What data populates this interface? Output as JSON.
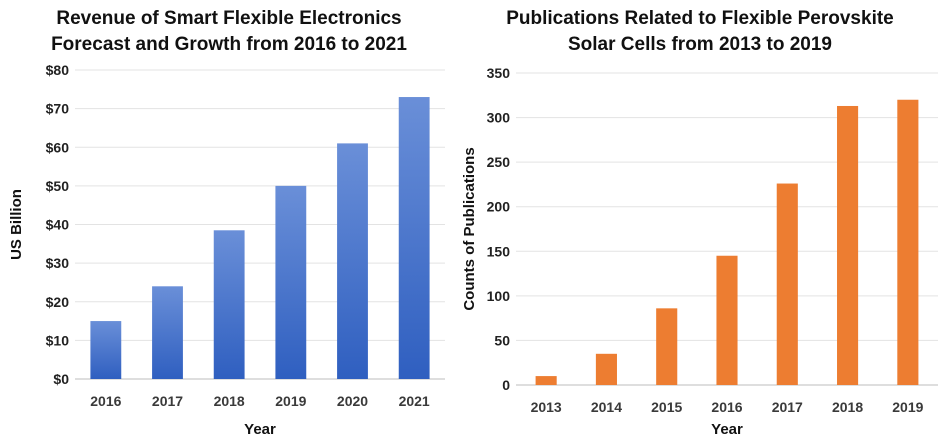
{
  "chart_data": [
    {
      "type": "bar",
      "title_lines": [
        "Revenue of Smart Flexible Electronics",
        "Forecast and Growth from 2016 to 2021"
      ],
      "xlabel": "Year",
      "ylabel": "US Billion",
      "categories": [
        "2016",
        "2017",
        "2018",
        "2019",
        "2020",
        "2021"
      ],
      "values": [
        15,
        24,
        38.5,
        50,
        61,
        73
      ],
      "ylim": [
        0,
        80
      ],
      "yticks": [
        0,
        10,
        20,
        30,
        40,
        50,
        60,
        70,
        80
      ],
      "ytick_labels": [
        "$0",
        "$10",
        "$20",
        "$30",
        "$40",
        "$50",
        "$60",
        "$70",
        "$80"
      ],
      "gridlines": true,
      "bar_color_top": "#6a8fd8",
      "bar_color_bottom": "#2f5fc0"
    },
    {
      "type": "bar",
      "title_lines": [
        "Publications Related to Flexible Perovskite",
        "Solar Cells from 2013 to 2019"
      ],
      "xlabel": "Year",
      "ylabel": "Counts of Publications",
      "categories": [
        "2013",
        "2014",
        "2015",
        "2016",
        "2017",
        "2018",
        "2019"
      ],
      "values": [
        10,
        35,
        86,
        145,
        226,
        313,
        320
      ],
      "ylim": [
        0,
        350
      ],
      "yticks": [
        0,
        50,
        100,
        150,
        200,
        250,
        300,
        350
      ],
      "ytick_labels": [
        "0",
        "50",
        "100",
        "150",
        "200",
        "250",
        "300",
        "350"
      ],
      "gridlines": true,
      "bar_color": "#ed7d31"
    }
  ]
}
